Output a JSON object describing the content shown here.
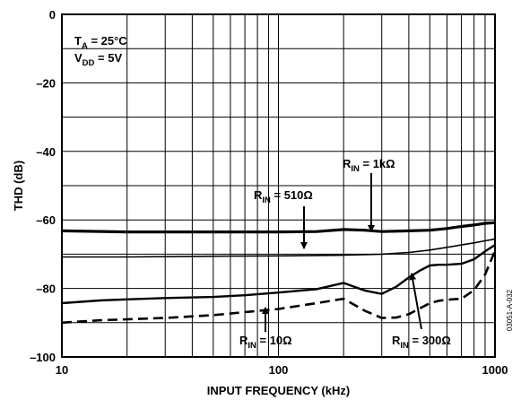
{
  "chart_data": {
    "type": "line",
    "title": "",
    "xlabel": "INPUT FREQUENCY (kHz)",
    "ylabel": "THD (dB)",
    "xscale": "log",
    "xlim": [
      10,
      1000
    ],
    "ylim": [
      -100,
      0
    ],
    "grid": true,
    "x_ticks": [
      "10",
      "100",
      "1000"
    ],
    "y_ticks": [
      "0",
      "–20",
      "–40",
      "–60",
      "–80",
      "–100"
    ],
    "conditions": [
      {
        "main": "T",
        "sub": "A",
        "rest": " = 25°C"
      },
      {
        "main": "V",
        "sub": "DD",
        "rest": " = 5V"
      }
    ],
    "series": [
      {
        "label_main": "R",
        "label_sub": "IN",
        "label_rest": " = 1kΩ",
        "style": "thick",
        "x": [
          10,
          20,
          50,
          100,
          150,
          200,
          250,
          300,
          400,
          500,
          600,
          700,
          800,
          900,
          1000
        ],
        "y": [
          -63.2,
          -63.5,
          -63.5,
          -63.5,
          -63.4,
          -62.8,
          -63.0,
          -63.4,
          -63.2,
          -63.0,
          -62.5,
          -61.9,
          -61.5,
          -61.0,
          -60.8
        ]
      },
      {
        "label_main": "R",
        "label_sub": "IN",
        "label_rest": " = 510Ω",
        "style": "thin",
        "x": [
          10,
          20,
          50,
          100,
          200,
          300,
          400,
          500,
          600,
          700,
          800,
          900,
          1000
        ],
        "y": [
          -70.8,
          -70.8,
          -70.6,
          -70.5,
          -70.3,
          -70.0,
          -69.5,
          -68.8,
          -68.0,
          -67.3,
          -66.7,
          -66.1,
          -65.6
        ]
      },
      {
        "label_main": "R",
        "label_sub": "IN",
        "label_rest": " = 300Ω",
        "style": "medium",
        "x": [
          10,
          15,
          20,
          30,
          50,
          70,
          100,
          150,
          200,
          250,
          300,
          350,
          400,
          450,
          500,
          550,
          600,
          700,
          800,
          900,
          1000
        ],
        "y": [
          -84.3,
          -83.5,
          -83.2,
          -82.8,
          -82.5,
          -82.0,
          -81.2,
          -80.2,
          -78.4,
          -80.6,
          -81.6,
          -79.5,
          -76.8,
          -74.8,
          -73.3,
          -73.1,
          -73.1,
          -72.8,
          -71.5,
          -69.2,
          -67.3
        ]
      },
      {
        "label_main": "R",
        "label_sub": "IN",
        "label_rest": " = 10Ω",
        "style": "dashed",
        "x": [
          10,
          15,
          20,
          30,
          50,
          70,
          100,
          150,
          200,
          250,
          300,
          350,
          400,
          450,
          500,
          550,
          600,
          700,
          800,
          900,
          1000
        ],
        "y": [
          -90.0,
          -89.3,
          -89.0,
          -88.6,
          -87.8,
          -86.9,
          -86.0,
          -84.3,
          -83.0,
          -86.5,
          -88.6,
          -88.5,
          -87.5,
          -85.8,
          -84.3,
          -83.6,
          -83.3,
          -83.0,
          -80.5,
          -76.0,
          -69.0
        ]
      }
    ],
    "figure_id": "03051-A-032"
  }
}
